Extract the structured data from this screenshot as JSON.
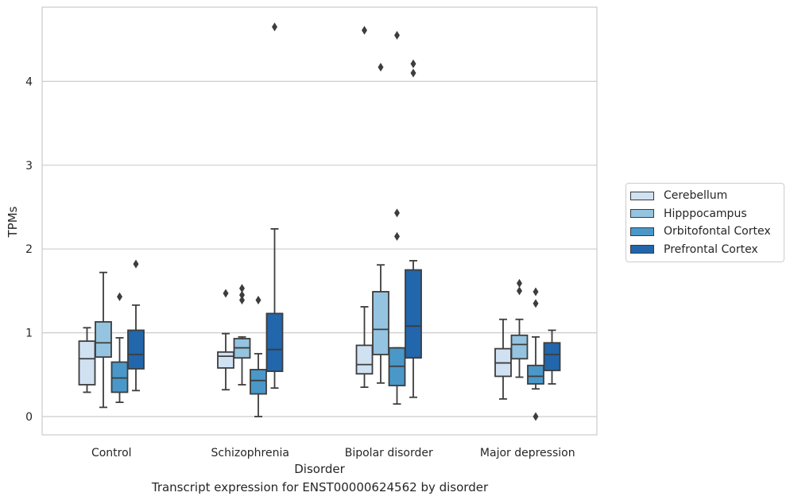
{
  "caption": "Transcript expression for ENST00000624562 by disorder",
  "chart_data": {
    "type": "box",
    "xlabel": "Disorder",
    "ylabel": "TPMs",
    "ylim": [
      -0.22,
      4.9
    ],
    "yticks": [
      0,
      1,
      2,
      3,
      4
    ],
    "grid": "horizontal",
    "legend_position": "right",
    "categories": [
      "Control",
      "Schizophrenia",
      "Bipolar disorder",
      "Major depression"
    ],
    "series": [
      {
        "name": "Cerebellum",
        "color": "#d0e1f2",
        "boxes": [
          {
            "whisker_low": 0.29,
            "q1": 0.38,
            "median": 0.69,
            "q3": 0.9,
            "whisker_high": 1.06,
            "outliers": []
          },
          {
            "whisker_low": 0.32,
            "q1": 0.58,
            "median": 0.72,
            "q3": 0.77,
            "whisker_high": 0.99,
            "outliers": [
              1.47
            ]
          },
          {
            "whisker_low": 0.35,
            "q1": 0.51,
            "median": 0.62,
            "q3": 0.85,
            "whisker_high": 1.31,
            "outliers": [
              4.61
            ]
          },
          {
            "whisker_low": 0.21,
            "q1": 0.48,
            "median": 0.64,
            "q3": 0.81,
            "whisker_high": 1.16,
            "outliers": []
          }
        ]
      },
      {
        "name": "Hipppocampus",
        "color": "#94c4df",
        "boxes": [
          {
            "whisker_low": 0.11,
            "q1": 0.71,
            "median": 0.88,
            "q3": 1.13,
            "whisker_high": 1.72,
            "outliers": []
          },
          {
            "whisker_low": 0.38,
            "q1": 0.7,
            "median": 0.82,
            "q3": 0.93,
            "whisker_high": 0.95,
            "outliers": [
              1.53,
              1.45,
              1.39
            ]
          },
          {
            "whisker_low": 0.4,
            "q1": 0.74,
            "median": 1.04,
            "q3": 1.49,
            "whisker_high": 1.81,
            "outliers": [
              4.17
            ]
          },
          {
            "whisker_low": 0.47,
            "q1": 0.69,
            "median": 0.86,
            "q3": 0.97,
            "whisker_high": 1.16,
            "outliers": [
              1.59,
              1.5
            ]
          }
        ]
      },
      {
        "name": "Orbitofontal Cortex",
        "color": "#4a98c9",
        "boxes": [
          {
            "whisker_low": 0.17,
            "q1": 0.29,
            "median": 0.46,
            "q3": 0.65,
            "whisker_high": 0.94,
            "outliers": [
              1.43
            ]
          },
          {
            "whisker_low": 0.0,
            "q1": 0.27,
            "median": 0.43,
            "q3": 0.56,
            "whisker_high": 0.75,
            "outliers": [
              1.39
            ]
          },
          {
            "whisker_low": 0.15,
            "q1": 0.37,
            "median": 0.6,
            "q3": 0.82,
            "whisker_high": 0.82,
            "outliers": [
              2.43,
              2.15,
              4.55
            ]
          },
          {
            "whisker_low": 0.33,
            "q1": 0.39,
            "median": 0.48,
            "q3": 0.61,
            "whisker_high": 0.95,
            "outliers": [
              1.49,
              1.35,
              0.0
            ]
          }
        ]
      },
      {
        "name": "Prefrontal Cortex",
        "color": "#2266ac",
        "boxes": [
          {
            "whisker_low": 0.31,
            "q1": 0.57,
            "median": 0.74,
            "q3": 1.03,
            "whisker_high": 1.33,
            "outliers": [
              1.82
            ]
          },
          {
            "whisker_low": 0.34,
            "q1": 0.54,
            "median": 0.8,
            "q3": 1.23,
            "whisker_high": 2.24,
            "outliers": [
              4.65
            ]
          },
          {
            "whisker_low": 0.23,
            "q1": 0.7,
            "median": 1.08,
            "q3": 1.75,
            "whisker_high": 1.86,
            "outliers": [
              4.21,
              4.1
            ]
          },
          {
            "whisker_low": 0.39,
            "q1": 0.55,
            "median": 0.74,
            "q3": 0.88,
            "whisker_high": 1.03,
            "outliers": []
          }
        ]
      }
    ]
  }
}
